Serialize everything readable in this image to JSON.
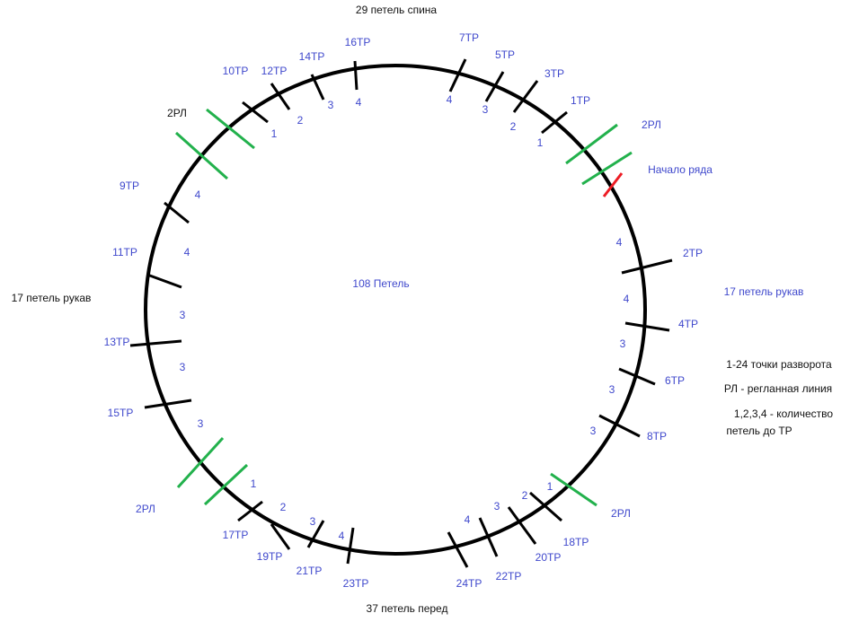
{
  "labels": [
    "29 петель спина",
    "17 петель рукав",
    "37 петель перед",
    "108 Петель",
    "2РЛ",
    "1-24 точки разворота",
    "РЛ - регланная линия",
    "1,2,3,4 - количество",
    "петель до ТР",
    "16ТР",
    "14ТР",
    "12ТР",
    "10ТР",
    "7ТР",
    "5ТР",
    "3ТР",
    "1ТР",
    "2РЛ",
    "Начало ряда",
    "9ТР",
    "11ТР",
    "13ТР",
    "15ТР",
    "2РЛ",
    "17ТР",
    "19ТР",
    "21ТР",
    "23ТР",
    "24ТР",
    "22ТР",
    "20ТР",
    "18ТР",
    "2РЛ",
    "8ТР",
    "6ТР",
    "4ТР",
    "2ТР",
    "17 петель рукав",
    4,
    3,
    2,
    1,
    4,
    3,
    2,
    1,
    4,
    4,
    3,
    3,
    3,
    1,
    2,
    3,
    4,
    4,
    3,
    2,
    1,
    3,
    3,
    3,
    4,
    4
  ]
}
